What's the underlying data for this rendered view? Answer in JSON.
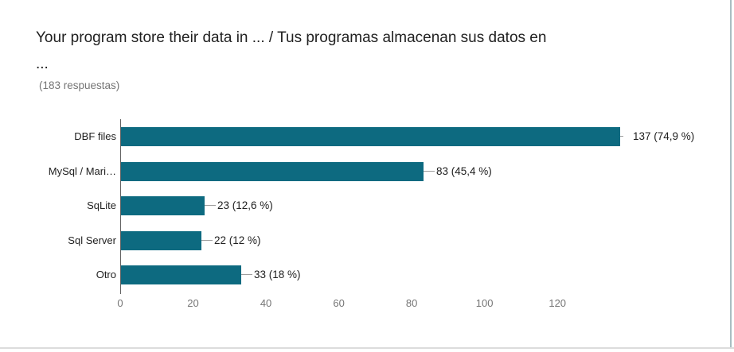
{
  "header": {
    "title_line1": "Your program store their data in ... / Tus programas almacenan sus datos en",
    "title_line2": "...",
    "subtitle": "(183 respuestas)"
  },
  "chart_data": {
    "type": "bar",
    "orientation": "horizontal",
    "title": "Your program store their data in ... / Tus programas almacenan sus datos en ...",
    "subtitle": "(183 respuestas)",
    "categories": [
      "DBF files",
      "MySql / Mari…",
      "SqLite",
      "Sql Server",
      "Otro"
    ],
    "values": [
      137,
      83,
      23,
      22,
      33
    ],
    "value_labels": [
      "137 (74,9 %)",
      "83 (45,4 %)",
      "23 (12,6 %)",
      "22 (12 %)",
      "33 (18 %)"
    ],
    "percentages": [
      74.9,
      45.4,
      12.6,
      12,
      18
    ],
    "x_ticks": [
      "0",
      "20",
      "40",
      "60",
      "80",
      "100",
      "120"
    ],
    "xlim": [
      0,
      140
    ],
    "grid": false,
    "legend": "none",
    "bar_color": "#0d6a80"
  },
  "colors": {
    "bar": "#0d6a80",
    "axis_line": "#616161",
    "tick_label": "#757575",
    "category_label": "#212121",
    "value_label": "#212121",
    "connector": "#9e9e9e",
    "title": "#212121",
    "subtitle": "#757575",
    "background": "#ffffff",
    "border_right": "#a9bec2",
    "border_bottom": "#dcdcdc"
  }
}
